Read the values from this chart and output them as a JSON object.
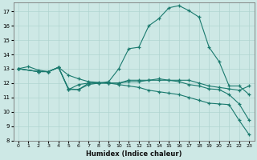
{
  "xlabel": "Humidex (Indice chaleur)",
  "bg_color": "#cde8e5",
  "line_color": "#1a7a6e",
  "grid_color": "#b0d4d0",
  "xlim": [
    -0.5,
    23.5
  ],
  "ylim": [
    8,
    17.6
  ],
  "yticks": [
    8,
    9,
    10,
    11,
    12,
    13,
    14,
    15,
    16,
    17
  ],
  "xticks": [
    0,
    1,
    2,
    3,
    4,
    5,
    6,
    7,
    8,
    9,
    10,
    11,
    12,
    13,
    14,
    15,
    16,
    17,
    18,
    19,
    20,
    21,
    22,
    23
  ],
  "line1_x": [
    0,
    1,
    2,
    3,
    4,
    5,
    6,
    7,
    8,
    9,
    10,
    11,
    12,
    13,
    14,
    15,
    16,
    17,
    18,
    19,
    20,
    21,
    22,
    23
  ],
  "line1_y": [
    13.0,
    13.15,
    12.9,
    12.8,
    13.1,
    11.6,
    11.55,
    11.9,
    12.0,
    12.1,
    13.0,
    14.4,
    14.5,
    16.0,
    16.5,
    17.25,
    17.4,
    17.05,
    16.6,
    14.5,
    13.5,
    11.8,
    11.8,
    11.2
  ],
  "line2_x": [
    0,
    2,
    3,
    4,
    5,
    6,
    7,
    8,
    9,
    10,
    11,
    12,
    13,
    14,
    15,
    16,
    17,
    18,
    19,
    20,
    21,
    22,
    23
  ],
  "line2_y": [
    13.0,
    12.8,
    12.8,
    13.1,
    12.55,
    12.3,
    12.1,
    12.05,
    12.0,
    12.0,
    12.2,
    12.2,
    12.2,
    12.2,
    12.2,
    12.2,
    12.2,
    12.0,
    11.8,
    11.7,
    11.6,
    11.5,
    11.8
  ],
  "line3_x": [
    0,
    2,
    3,
    4,
    5,
    6,
    7,
    8,
    9,
    10,
    11,
    12,
    13,
    14,
    15,
    16,
    17,
    18,
    19,
    20,
    21,
    22,
    23
  ],
  "line3_y": [
    13.0,
    12.8,
    12.8,
    13.1,
    11.55,
    11.9,
    12.0,
    12.0,
    12.0,
    12.0,
    12.1,
    12.1,
    12.2,
    12.3,
    12.2,
    12.1,
    11.9,
    11.8,
    11.6,
    11.55,
    11.2,
    10.55,
    9.4
  ],
  "line4_x": [
    0,
    2,
    3,
    4,
    5,
    6,
    7,
    8,
    9,
    10,
    11,
    12,
    13,
    14,
    15,
    16,
    17,
    18,
    19,
    20,
    21,
    22,
    23
  ],
  "line4_y": [
    13.0,
    12.8,
    12.8,
    13.1,
    11.55,
    11.55,
    12.0,
    12.0,
    12.0,
    11.9,
    11.8,
    11.7,
    11.5,
    11.4,
    11.3,
    11.2,
    11.0,
    10.8,
    10.6,
    10.55,
    10.5,
    9.4,
    8.4
  ]
}
